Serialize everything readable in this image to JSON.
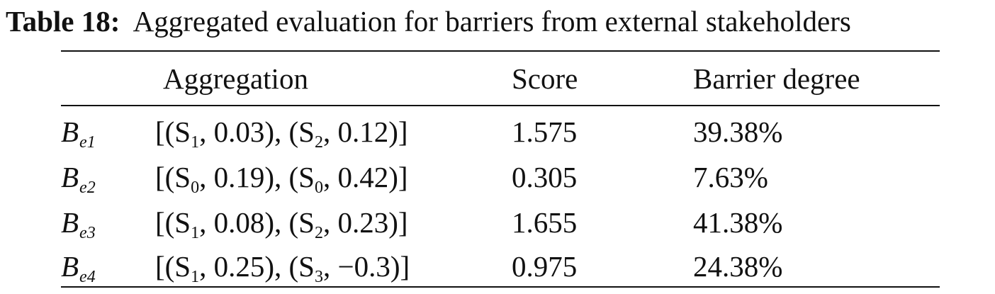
{
  "caption": {
    "label": "Table 18:",
    "text": "Aggregated evaluation for barriers from external stakeholders"
  },
  "headers": {
    "aggregation": "Aggregation",
    "score": "Score",
    "barrier_degree": "Barrier degree"
  },
  "rows": [
    {
      "label": "B",
      "label_sub": "e1",
      "agg": {
        "open": "[(S",
        "s1": "1",
        "mid": ", 0.03), (S",
        "s2": "2",
        "close": ", 0.12)]"
      },
      "score": "1.575",
      "degree": "39.38%"
    },
    {
      "label": "B",
      "label_sub": "e2",
      "agg": {
        "open": "[(S",
        "s1": "0",
        "mid": ", 0.19), (S",
        "s2": "0",
        "close": ", 0.42)]"
      },
      "score": "0.305",
      "degree": "7.63%"
    },
    {
      "label": "B",
      "label_sub": "e3",
      "agg": {
        "open": "[(S",
        "s1": "1",
        "mid": ", 0.08), (S",
        "s2": "2",
        "close": ", 0.23)]"
      },
      "score": "1.655",
      "degree": "41.38%"
    },
    {
      "label": "B",
      "label_sub": "e4",
      "agg": {
        "open": "[(S",
        "s1": "1",
        "mid": ", 0.25), (S",
        "s2": "3",
        "close": ", −0.3)]"
      },
      "score": "0.975",
      "degree": "24.38%"
    }
  ]
}
